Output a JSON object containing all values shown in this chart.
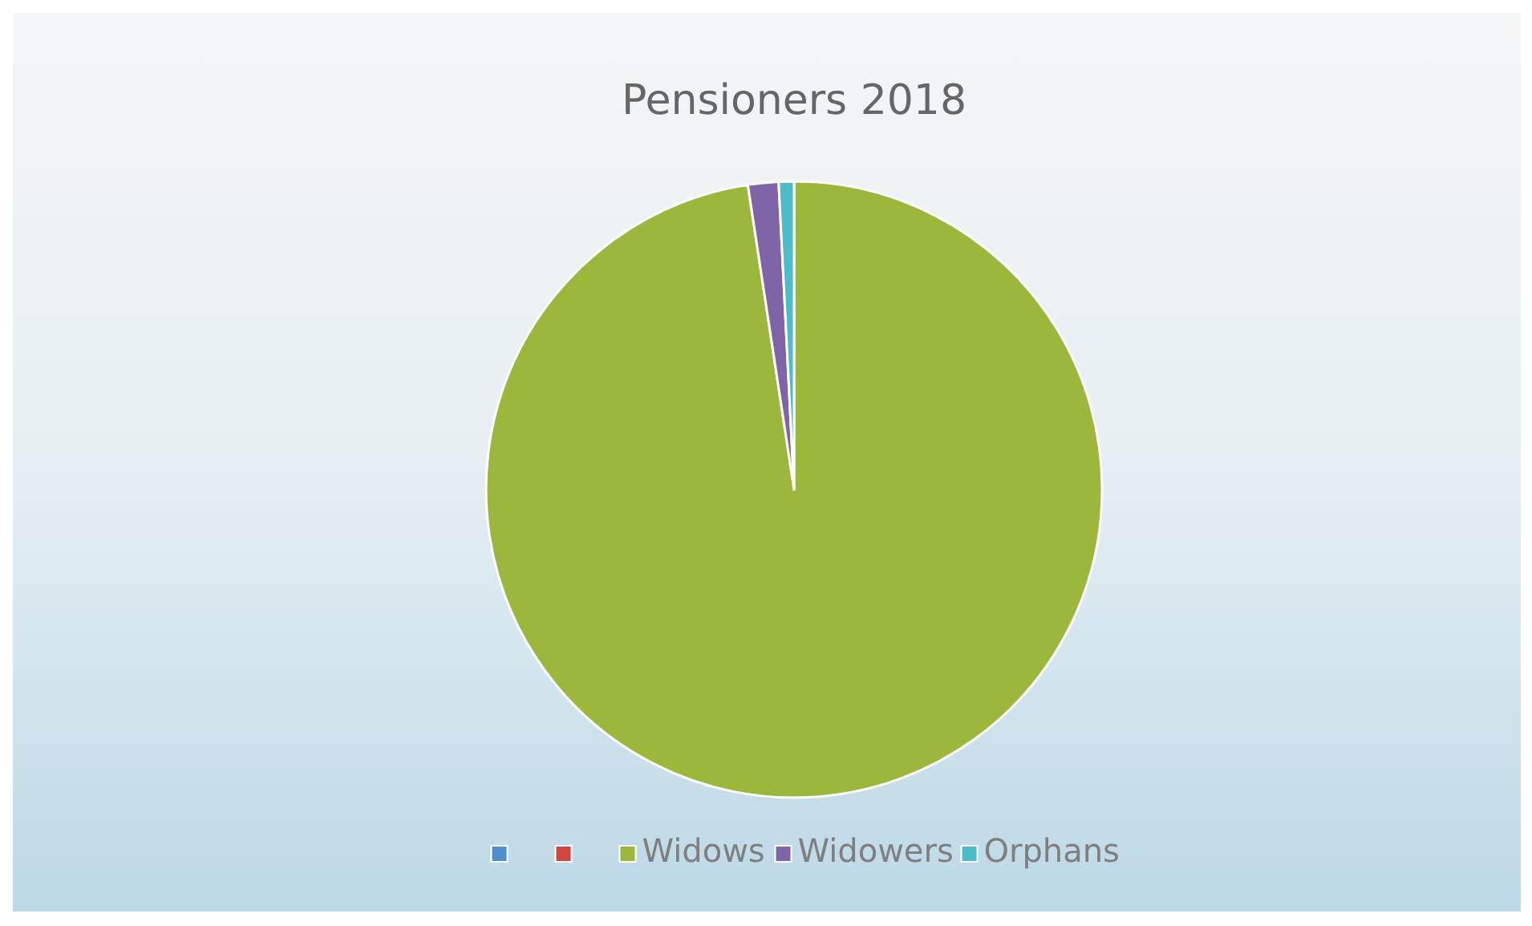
{
  "chart_data": {
    "type": "pie",
    "title": "Pensioners 2018",
    "categories": [
      null,
      null,
      "Widows",
      "Widowers",
      "Orphans"
    ],
    "values": [
      0,
      0,
      97.6,
      1.6,
      0.8
    ],
    "colors": [
      "#4f8fd0",
      "#d2443f",
      "#9bb83c",
      "#8064a8",
      "#4bbcc8"
    ],
    "legend": "bottom"
  }
}
